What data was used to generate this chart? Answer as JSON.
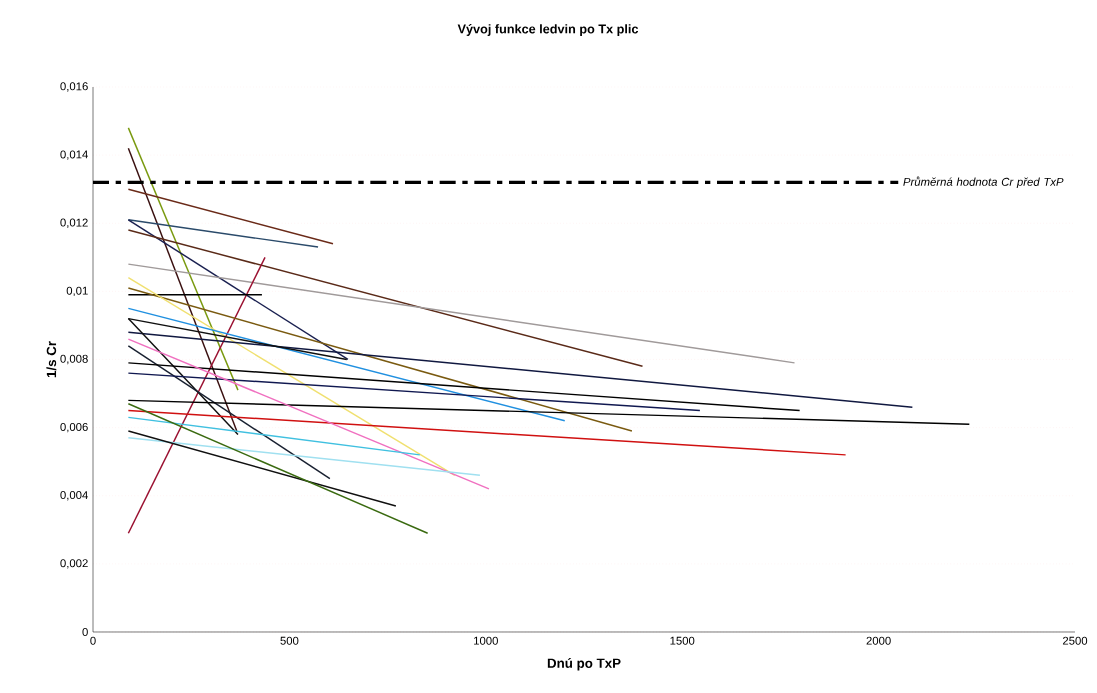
{
  "chart_data": {
    "type": "line",
    "title": "Vývoj funkce ledvin po Tx plic",
    "xlabel": "Dnú po TxP",
    "ylabel": "1/s Cr",
    "xlim": [
      0,
      2500
    ],
    "xticks": [
      0,
      500,
      1000,
      1500,
      2000,
      2500
    ],
    "ylim": [
      0,
      0.016
    ],
    "yticks": [
      {
        "value": 0,
        "label": "0"
      },
      {
        "value": 0.002,
        "label": "0,002"
      },
      {
        "value": 0.004,
        "label": "0,004"
      },
      {
        "value": 0.006,
        "label": "0,006"
      },
      {
        "value": 0.008,
        "label": "0,008"
      },
      {
        "value": 0.01,
        "label": "0,01"
      },
      {
        "value": 0.012,
        "label": "0,012"
      },
      {
        "value": 0.014,
        "label": "0,014"
      },
      {
        "value": 0.016,
        "label": "0,016"
      }
    ],
    "grid": "y",
    "marker": "none",
    "ref_lines": [
      {
        "axis": "y",
        "value": 0.0132,
        "label": "Průměrná hodnota Cr před TxP",
        "color": "#000000",
        "line_style": "dashdot"
      }
    ],
    "series": [
      {
        "color": "#7a9a10",
        "x": [
          90,
          369
        ],
        "values": [
          0.0148,
          0.0071
        ]
      },
      {
        "color": "#3a1010",
        "x": [
          90,
          366
        ],
        "values": [
          0.0142,
          0.0059
        ]
      },
      {
        "color": "#6a2a18",
        "x": [
          90,
          611
        ],
        "values": [
          0.013,
          0.0114
        ]
      },
      {
        "color": "#2a4a6a",
        "x": [
          90,
          573
        ],
        "values": [
          0.0121,
          0.0113
        ]
      },
      {
        "color": "#1a2050",
        "x": [
          90,
          649
        ],
        "values": [
          0.0121,
          0.008
        ]
      },
      {
        "color": "#5a2a18",
        "x": [
          90,
          1399
        ],
        "values": [
          0.0118,
          0.0078
        ]
      },
      {
        "color": "#a09a9a",
        "x": [
          90,
          1786
        ],
        "values": [
          0.0108,
          0.0079
        ]
      },
      {
        "color": "#9a1030",
        "x": [
          90,
          438
        ],
        "values": [
          0.0029,
          0.011
        ]
      },
      {
        "color": "#000000",
        "x": [
          90,
          430
        ],
        "values": [
          0.0099,
          0.0099
        ]
      },
      {
        "color": "#7a5a10",
        "x": [
          90,
          1372
        ],
        "values": [
          0.0101,
          0.0059
        ]
      },
      {
        "color": "#f0e070",
        "x": [
          90,
          921
        ],
        "values": [
          0.0104,
          0.0046
        ]
      },
      {
        "color": "#2090e0",
        "x": [
          90,
          1201
        ],
        "values": [
          0.0095,
          0.0062
        ]
      },
      {
        "color": "#101840",
        "x": [
          90,
          2086
        ],
        "values": [
          0.0088,
          0.0066
        ]
      },
      {
        "color": "#101010",
        "x": [
          90,
          646
        ],
        "values": [
          0.0092,
          0.008
        ]
      },
      {
        "color": "#101010",
        "x": [
          90,
          369
        ],
        "values": [
          0.0092,
          0.0058
        ]
      },
      {
        "color": "#182030",
        "x": [
          90,
          603
        ],
        "values": [
          0.0084,
          0.0045
        ]
      },
      {
        "color": "#000000",
        "x": [
          90,
          1799
        ],
        "values": [
          0.0079,
          0.0065
        ]
      },
      {
        "color": "#000000",
        "x": [
          90,
          2231
        ],
        "values": [
          0.0068,
          0.0061
        ]
      },
      {
        "color": "#101850",
        "x": [
          90,
          1545
        ],
        "values": [
          0.0076,
          0.0065
        ]
      },
      {
        "color": "#d01010",
        "x": [
          90,
          1916
        ],
        "values": [
          0.0065,
          0.0052
        ]
      },
      {
        "color": "#f070c0",
        "x": [
          90,
          1008
        ],
        "values": [
          0.0086,
          0.0042
        ]
      },
      {
        "color": "#40c0e0",
        "x": [
          90,
          832
        ],
        "values": [
          0.0063,
          0.0052
        ]
      },
      {
        "color": "#a0e0f0",
        "x": [
          90,
          985
        ],
        "values": [
          0.0057,
          0.0046
        ]
      },
      {
        "color": "#101010",
        "x": [
          90,
          771
        ],
        "values": [
          0.0059,
          0.0037
        ]
      },
      {
        "color": "#3a6a10",
        "x": [
          90,
          852
        ],
        "values": [
          0.0067,
          0.0029
        ]
      }
    ]
  }
}
